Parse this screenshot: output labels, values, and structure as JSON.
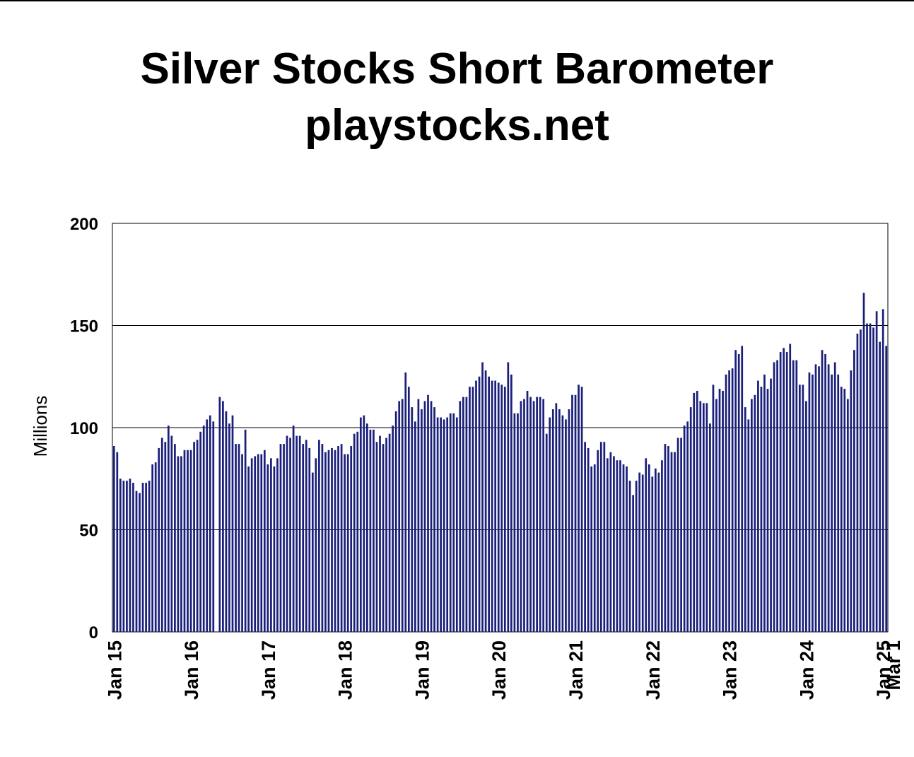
{
  "chart_data": {
    "type": "bar",
    "title": "Silver Stocks Short Barometer",
    "subtitle": "playstocks.net",
    "xlabel": "",
    "ylabel": "Millions",
    "ylim": [
      0,
      200
    ],
    "yticks": [
      0,
      50,
      100,
      150,
      200
    ],
    "grid": true,
    "bar_color": "#1a1f7a",
    "frequency": "semi-monthly",
    "x_ticks": [
      {
        "label": "Jan 15",
        "index": 0
      },
      {
        "label": "Jan 16",
        "index": 24
      },
      {
        "label": "Jan 17",
        "index": 48
      },
      {
        "label": "Jan 18",
        "index": 72
      },
      {
        "label": "Jan 19",
        "index": 96
      },
      {
        "label": "Jan 20",
        "index": 120
      },
      {
        "label": "Jan 21",
        "index": 144
      },
      {
        "label": "Jan 22",
        "index": 168
      },
      {
        "label": "Jan 23",
        "index": 192
      },
      {
        "label": "Jan 24",
        "index": 216
      },
      {
        "label": "Jan 25",
        "index": 240
      },
      {
        "label": "Mar 1",
        "index": 243
      }
    ],
    "values": [
      91,
      88,
      75,
      74,
      74,
      75,
      73,
      69,
      68,
      73,
      73,
      74,
      82,
      83,
      90,
      95,
      93,
      101,
      96,
      92,
      86,
      86,
      89,
      89,
      89,
      93,
      94,
      98,
      101,
      104,
      106,
      103,
      0,
      115,
      113,
      108,
      102,
      106,
      92,
      92,
      87,
      99,
      81,
      85,
      86,
      87,
      87,
      89,
      82,
      85,
      81,
      85,
      92,
      92,
      96,
      95,
      101,
      96,
      96,
      92,
      94,
      90,
      78,
      85,
      94,
      92,
      88,
      89,
      90,
      89,
      91,
      92,
      87,
      87,
      91,
      97,
      98,
      105,
      106,
      102,
      99,
      99,
      93,
      96,
      92,
      95,
      97,
      101,
      108,
      113,
      114,
      127,
      120,
      110,
      103,
      114,
      109,
      113,
      116,
      113,
      110,
      105,
      105,
      104,
      105,
      107,
      107,
      105,
      113,
      115,
      115,
      120,
      120,
      123,
      125,
      132,
      128,
      125,
      123,
      123,
      122,
      121,
      120,
      132,
      126,
      107,
      107,
      113,
      114,
      118,
      115,
      113,
      115,
      115,
      114,
      97,
      105,
      109,
      112,
      109,
      106,
      104,
      109,
      116,
      116,
      121,
      120,
      93,
      90,
      81,
      82,
      89,
      93,
      93,
      85,
      88,
      86,
      84,
      84,
      82,
      81,
      74,
      67,
      74,
      78,
      77,
      85,
      82,
      76,
      80,
      78,
      84,
      92,
      91,
      88,
      88,
      95,
      95,
      101,
      103,
      110,
      117,
      118,
      113,
      112,
      112,
      102,
      121,
      114,
      119,
      118,
      126,
      128,
      129,
      138,
      136,
      140,
      110,
      104,
      114,
      116,
      123,
      120,
      126,
      119,
      124,
      132,
      133,
      137,
      139,
      137,
      141,
      133,
      133,
      121,
      121,
      113,
      127,
      126,
      131,
      130,
      138,
      136,
      131,
      126,
      132,
      126,
      120,
      119,
      114,
      128,
      138,
      146,
      148,
      166,
      151,
      151,
      149,
      157,
      142,
      158,
      140
    ]
  }
}
